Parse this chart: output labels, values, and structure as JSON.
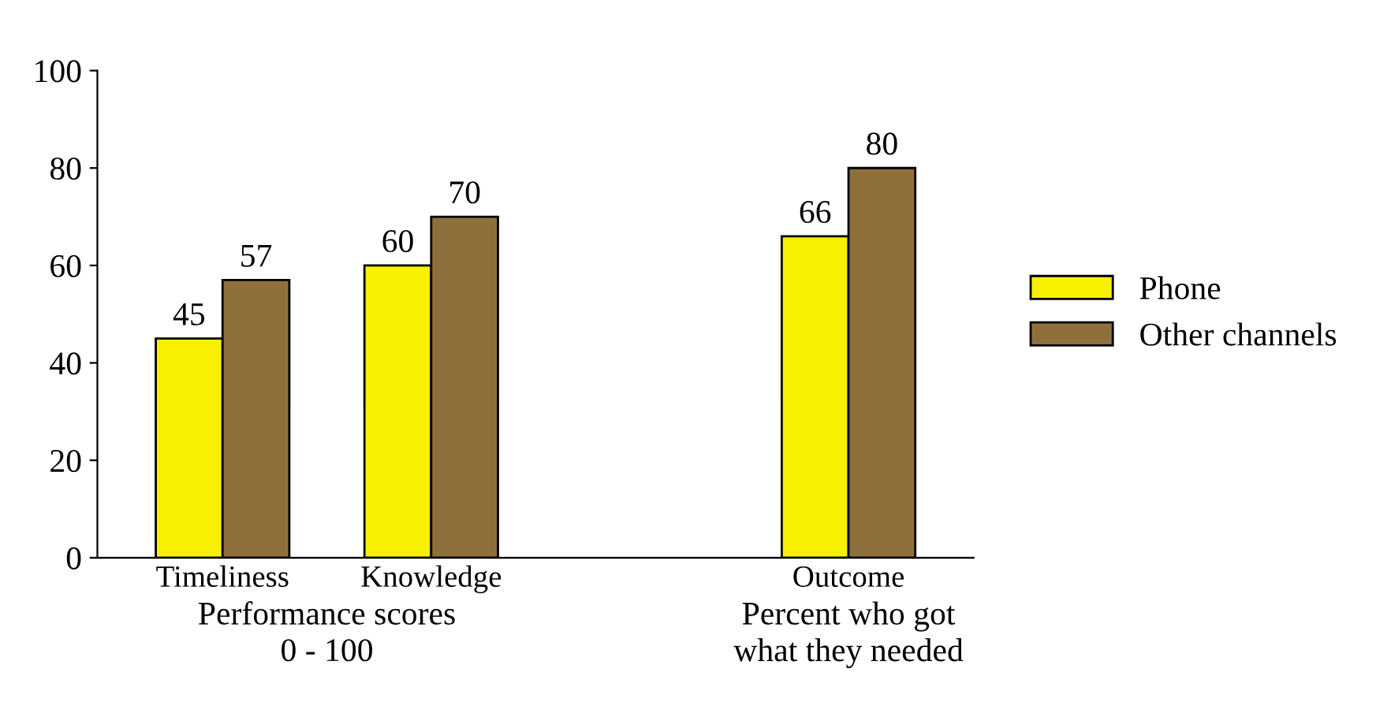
{
  "chart_data": {
    "type": "bar",
    "categories": [
      "Timeliness",
      "Knowledge",
      null,
      "Outcome"
    ],
    "series": [
      {
        "name": "Phone",
        "color": "#f7f000",
        "values": [
          45,
          60,
          null,
          66
        ]
      },
      {
        "name": "Other channels",
        "color": "#8f703c",
        "values": [
          57,
          70,
          null,
          80
        ]
      }
    ],
    "ylim": [
      0,
      100
    ],
    "yticks": [
      0,
      20,
      40,
      60,
      80,
      100
    ],
    "grid": false,
    "legend": "right",
    "data_labels": true,
    "annotations": [
      "Performance scores\n0 - 100",
      "Percent who got\nwhat they needed"
    ]
  }
}
